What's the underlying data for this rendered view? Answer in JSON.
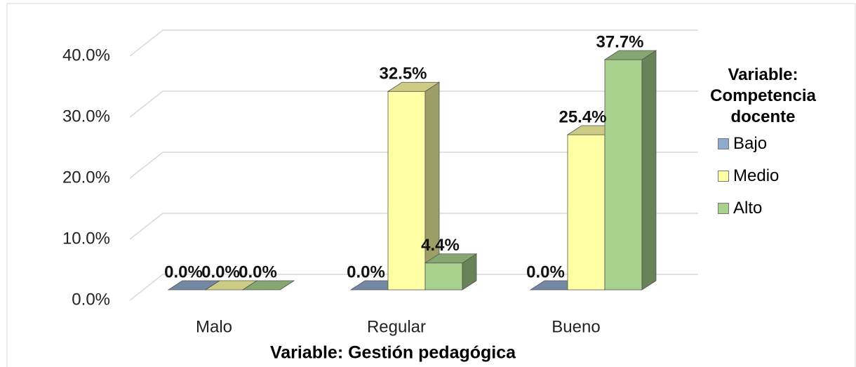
{
  "chart_data": {
    "type": "bar3d",
    "categories": [
      "Malo",
      "Regular",
      "Bueno"
    ],
    "series": [
      {
        "name": "Bajo",
        "color": "#8eaacc",
        "values": [
          0,
          0,
          0
        ],
        "value_labels": [
          "0.0%",
          "0.0%",
          "0.0%"
        ]
      },
      {
        "name": "Medio",
        "color": "#ffffa6",
        "values": [
          0,
          32.5,
          25.4
        ],
        "value_labels": [
          "0.0%",
          "32.5%",
          "25.4%"
        ]
      },
      {
        "name": "Alto",
        "color": "#a9d18e",
        "values": [
          0,
          4.4,
          37.7
        ],
        "value_labels": [
          "0.0%",
          "4.4%",
          "37.7%"
        ]
      }
    ],
    "ylim": [
      0,
      40
    ],
    "yticks": [
      {
        "value": 0,
        "label": "0.0%"
      },
      {
        "value": 10,
        "label": "10.0%"
      },
      {
        "value": 20,
        "label": "20.0%"
      },
      {
        "value": 30,
        "label": "30.0%"
      },
      {
        "value": 40,
        "label": "40.0%"
      }
    ],
    "grid": true,
    "xlabel": "Variable: Gestión pedagógica",
    "legend_title": "Variable: Competencia docente",
    "legend_position": "right"
  }
}
